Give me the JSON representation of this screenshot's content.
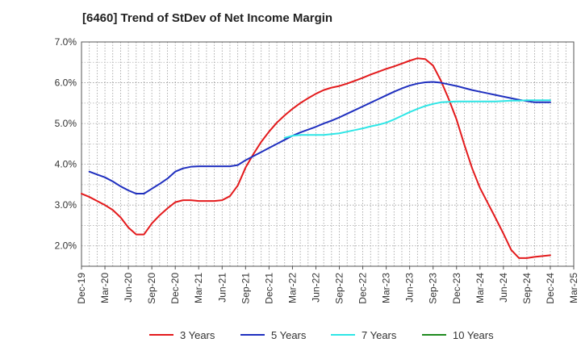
{
  "chart_data": {
    "type": "line",
    "title": "[6460]  Trend of StDev of Net Income Margin",
    "xlabel": "",
    "ylabel": "",
    "x_tick_labels": [
      "Dec-19",
      "Mar-20",
      "Jun-20",
      "Sep-20",
      "Dec-20",
      "Mar-21",
      "Jun-21",
      "Sep-21",
      "Dec-21",
      "Mar-22",
      "Jun-22",
      "Sep-22",
      "Dec-22",
      "Mar-23",
      "Jun-23",
      "Sep-23",
      "Dec-23",
      "Mar-24",
      "Jun-24",
      "Sep-24",
      "Dec-24",
      "Mar-25"
    ],
    "y_tick_labels": [
      "2.0%",
      "3.0%",
      "4.0%",
      "5.0%",
      "6.0%",
      "7.0%"
    ],
    "ylim": [
      1.5,
      7.0
    ],
    "y_unit": "%",
    "grid": true,
    "legend_position": "bottom",
    "series": [
      {
        "name": "3 Years",
        "color": "#e31a1c",
        "points": [
          [
            "Dec-19",
            3.28
          ],
          [
            "Jan-20",
            3.2
          ],
          [
            "Feb-20",
            3.1
          ],
          [
            "Mar-20",
            3.0
          ],
          [
            "Apr-20",
            2.88
          ],
          [
            "May-20",
            2.7
          ],
          [
            "Jun-20",
            2.45
          ],
          [
            "Jul-20",
            2.28
          ],
          [
            "Aug-20",
            2.28
          ],
          [
            "Sep-20",
            2.55
          ],
          [
            "Oct-20",
            2.75
          ],
          [
            "Nov-20",
            2.92
          ],
          [
            "Dec-20",
            3.07
          ],
          [
            "Jan-21",
            3.12
          ],
          [
            "Feb-21",
            3.12
          ],
          [
            "Mar-21",
            3.1
          ],
          [
            "Apr-21",
            3.1
          ],
          [
            "May-21",
            3.1
          ],
          [
            "Jun-21",
            3.12
          ],
          [
            "Jul-21",
            3.22
          ],
          [
            "Aug-21",
            3.48
          ],
          [
            "Sep-21",
            3.92
          ],
          [
            "Oct-21",
            4.25
          ],
          [
            "Nov-21",
            4.55
          ],
          [
            "Dec-21",
            4.8
          ],
          [
            "Jan-22",
            5.02
          ],
          [
            "Feb-22",
            5.2
          ],
          [
            "Mar-22",
            5.36
          ],
          [
            "Apr-22",
            5.5
          ],
          [
            "May-22",
            5.62
          ],
          [
            "Jun-22",
            5.73
          ],
          [
            "Jul-22",
            5.82
          ],
          [
            "Aug-22",
            5.88
          ],
          [
            "Sep-22",
            5.92
          ],
          [
            "Oct-22",
            5.98
          ],
          [
            "Nov-22",
            6.05
          ],
          [
            "Dec-22",
            6.12
          ],
          [
            "Jan-23",
            6.2
          ],
          [
            "Feb-23",
            6.27
          ],
          [
            "Mar-23",
            6.34
          ],
          [
            "Apr-23",
            6.4
          ],
          [
            "May-23",
            6.47
          ],
          [
            "Jun-23",
            6.54
          ],
          [
            "Jul-23",
            6.6
          ],
          [
            "Aug-23",
            6.58
          ],
          [
            "Sep-23",
            6.42
          ],
          [
            "Oct-23",
            6.05
          ],
          [
            "Nov-23",
            5.6
          ],
          [
            "Dec-23",
            5.1
          ],
          [
            "Jan-24",
            4.48
          ],
          [
            "Feb-24",
            3.9
          ],
          [
            "Mar-24",
            3.42
          ],
          [
            "Apr-24",
            3.05
          ],
          [
            "May-24",
            2.68
          ],
          [
            "Jun-24",
            2.3
          ],
          [
            "Jul-24",
            1.9
          ],
          [
            "Aug-24",
            1.7
          ],
          [
            "Sep-24",
            1.7
          ],
          [
            "Oct-24",
            1.73
          ],
          [
            "Nov-24",
            1.75
          ],
          [
            "Dec-24",
            1.77
          ]
        ]
      },
      {
        "name": "5 Years",
        "color": "#1f2fbf",
        "points": [
          [
            "Jan-20",
            3.82
          ],
          [
            "Feb-20",
            3.75
          ],
          [
            "Mar-20",
            3.68
          ],
          [
            "Apr-20",
            3.58
          ],
          [
            "May-20",
            3.46
          ],
          [
            "Jun-20",
            3.36
          ],
          [
            "Jul-20",
            3.28
          ],
          [
            "Aug-20",
            3.28
          ],
          [
            "Sep-20",
            3.4
          ],
          [
            "Oct-20",
            3.52
          ],
          [
            "Nov-20",
            3.65
          ],
          [
            "Dec-20",
            3.82
          ],
          [
            "Jan-21",
            3.9
          ],
          [
            "Feb-21",
            3.94
          ],
          [
            "Mar-21",
            3.95
          ],
          [
            "Apr-21",
            3.95
          ],
          [
            "May-21",
            3.95
          ],
          [
            "Jun-21",
            3.95
          ],
          [
            "Jul-21",
            3.95
          ],
          [
            "Aug-21",
            3.98
          ],
          [
            "Sep-21",
            4.1
          ],
          [
            "Oct-21",
            4.2
          ],
          [
            "Nov-21",
            4.3
          ],
          [
            "Dec-21",
            4.4
          ],
          [
            "Jan-22",
            4.5
          ],
          [
            "Feb-22",
            4.6
          ],
          [
            "Mar-22",
            4.7
          ],
          [
            "Apr-22",
            4.78
          ],
          [
            "May-22",
            4.85
          ],
          [
            "Jun-22",
            4.92
          ],
          [
            "Jul-22",
            5.0
          ],
          [
            "Aug-22",
            5.07
          ],
          [
            "Sep-22",
            5.15
          ],
          [
            "Oct-22",
            5.24
          ],
          [
            "Nov-22",
            5.33
          ],
          [
            "Dec-22",
            5.42
          ],
          [
            "Jan-23",
            5.51
          ],
          [
            "Feb-23",
            5.6
          ],
          [
            "Mar-23",
            5.69
          ],
          [
            "Apr-23",
            5.78
          ],
          [
            "May-23",
            5.86
          ],
          [
            "Jun-23",
            5.93
          ],
          [
            "Jul-23",
            5.98
          ],
          [
            "Aug-23",
            6.01
          ],
          [
            "Sep-23",
            6.02
          ],
          [
            "Oct-23",
            6.0
          ],
          [
            "Nov-23",
            5.96
          ],
          [
            "Dec-23",
            5.92
          ],
          [
            "Jan-24",
            5.87
          ],
          [
            "Feb-24",
            5.82
          ],
          [
            "Mar-24",
            5.78
          ],
          [
            "Apr-24",
            5.74
          ],
          [
            "May-24",
            5.7
          ],
          [
            "Jun-24",
            5.66
          ],
          [
            "Jul-24",
            5.62
          ],
          [
            "Aug-24",
            5.58
          ],
          [
            "Sep-24",
            5.55
          ],
          [
            "Oct-24",
            5.52
          ],
          [
            "Nov-24",
            5.52
          ],
          [
            "Dec-24",
            5.52
          ]
        ]
      },
      {
        "name": "7 Years",
        "color": "#2ee6e6",
        "points": [
          [
            "Feb-22",
            4.65
          ],
          [
            "Mar-22",
            4.7
          ],
          [
            "Apr-22",
            4.72
          ],
          [
            "May-22",
            4.72
          ],
          [
            "Jun-22",
            4.72
          ],
          [
            "Jul-22",
            4.72
          ],
          [
            "Aug-22",
            4.74
          ],
          [
            "Sep-22",
            4.76
          ],
          [
            "Oct-22",
            4.8
          ],
          [
            "Nov-22",
            4.84
          ],
          [
            "Dec-22",
            4.88
          ],
          [
            "Jan-23",
            4.93
          ],
          [
            "Feb-23",
            4.97
          ],
          [
            "Mar-23",
            5.02
          ],
          [
            "Apr-23",
            5.1
          ],
          [
            "May-23",
            5.19
          ],
          [
            "Jun-23",
            5.28
          ],
          [
            "Jul-23",
            5.36
          ],
          [
            "Aug-23",
            5.43
          ],
          [
            "Sep-23",
            5.48
          ],
          [
            "Oct-23",
            5.52
          ],
          [
            "Nov-23",
            5.53
          ],
          [
            "Dec-23",
            5.54
          ],
          [
            "Jan-24",
            5.54
          ],
          [
            "Feb-24",
            5.54
          ],
          [
            "Mar-24",
            5.54
          ],
          [
            "Apr-24",
            5.54
          ],
          [
            "May-24",
            5.54
          ],
          [
            "Jun-24",
            5.55
          ],
          [
            "Jul-24",
            5.56
          ],
          [
            "Aug-24",
            5.56
          ],
          [
            "Sep-24",
            5.57
          ],
          [
            "Oct-24",
            5.57
          ],
          [
            "Nov-24",
            5.57
          ],
          [
            "Dec-24",
            5.57
          ]
        ]
      },
      {
        "name": "10 Years",
        "color": "#1f8a1f",
        "points": []
      }
    ]
  }
}
